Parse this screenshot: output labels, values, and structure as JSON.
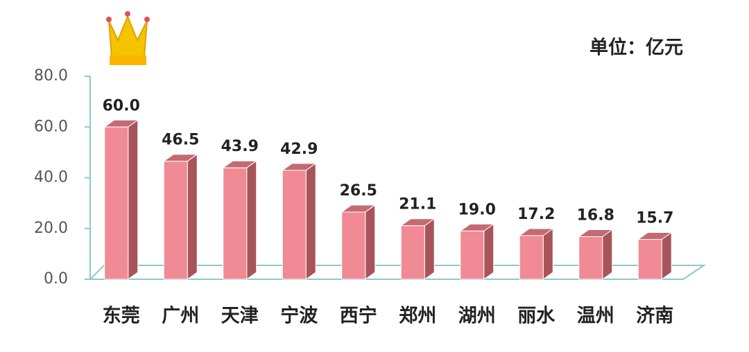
{
  "chart_data": {
    "type": "bar3d",
    "annotation": "单位：亿元",
    "categories": [
      "东莞",
      "广州",
      "天津",
      "宁波",
      "西宁",
      "郑州",
      "湖州",
      "丽水",
      "温州",
      "济南"
    ],
    "values": [
      60.0,
      46.5,
      43.9,
      42.9,
      26.5,
      21.1,
      19.0,
      17.2,
      16.8,
      15.7
    ],
    "value_labels": [
      "60.0",
      "46.5",
      "43.9",
      "42.9",
      "26.5",
      "21.1",
      "19.0",
      "17.2",
      "16.8",
      "15.7"
    ],
    "color": "#f08a94",
    "ylim": [
      0,
      80
    ],
    "yticks": [
      {
        "value": 0,
        "label": "0.0"
      },
      {
        "value": 20,
        "label": "20.0"
      },
      {
        "value": 40,
        "label": "40.0"
      },
      {
        "value": 60,
        "label": "60.0"
      },
      {
        "value": 80,
        "label": "80.0"
      }
    ]
  }
}
